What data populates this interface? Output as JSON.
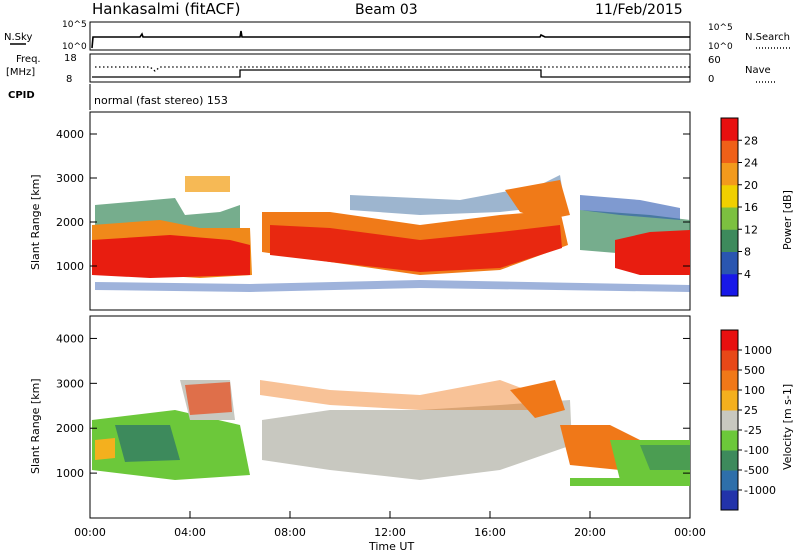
{
  "header": {
    "title": "Hankasalmi (fitACF)",
    "beam": "Beam 03",
    "date": "11/Feb/2015"
  },
  "status_panels": {
    "nsky_label": "N.Sky",
    "nsky_ticks": [
      "10^5",
      "10^0"
    ],
    "nsearch_label": "N.Search",
    "nsearch_ticks": [
      "10^5",
      "10^0"
    ],
    "freq_label_1": "Freq.",
    "freq_label_2": "[MHz]",
    "freq_ticks": [
      "18",
      "8"
    ],
    "nave_label": "Nave",
    "nave_ticks": [
      "60",
      "0"
    ],
    "cpid_label": "CPID",
    "cpid_text": "normal (fast stereo) 153"
  },
  "chart_data": [
    {
      "type": "heatmap",
      "title": "",
      "ylabel": "Slant Range [km]",
      "xlabel": "",
      "yticks": [
        "1000",
        "2000",
        "3000",
        "4000"
      ],
      "ylim": [
        0,
        4500
      ],
      "colorbar_label": "Power [dB]",
      "colorbar_ticks": [
        "4",
        "8",
        "12",
        "16",
        "20",
        "24",
        "28"
      ],
      "colorbar_colors": [
        "#1818e8",
        "#2a56b0",
        "#3d8a5c",
        "#7cc040",
        "#f0d000",
        "#f39a1c",
        "#ef6018",
        "#e81010"
      ]
    },
    {
      "type": "heatmap",
      "title": "",
      "ylabel": "Slant Range [km]",
      "xlabel": "Time UT",
      "yticks": [
        "1000",
        "2000",
        "3000",
        "4000"
      ],
      "ylim": [
        0,
        4500
      ],
      "xticks": [
        "00:00",
        "04:00",
        "08:00",
        "12:00",
        "16:00",
        "20:00",
        "00:00"
      ],
      "colorbar_label": "Velocity [m s-1]",
      "colorbar_ticks": [
        "1000",
        "500",
        "100",
        "25",
        "-25",
        "-100",
        "-500",
        "-1000"
      ],
      "colorbar_colors": [
        "#2233aa",
        "#2e6faa",
        "#3d8a5c",
        "#6cc83a",
        "#c8c8c0",
        "#f4b01e",
        "#f07818",
        "#e84818",
        "#e81010"
      ]
    }
  ]
}
